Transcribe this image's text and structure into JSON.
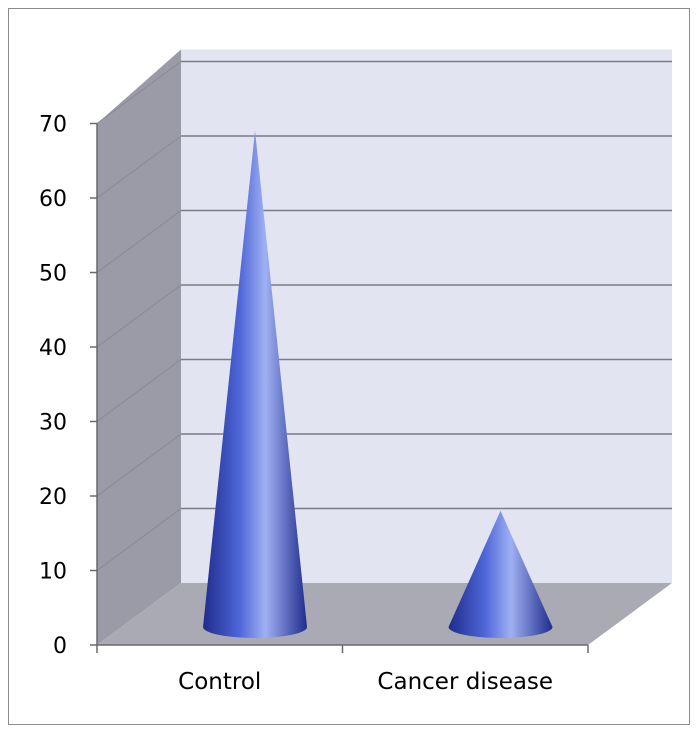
{
  "chart_data": {
    "type": "bar",
    "subtype": "3d-cone",
    "categories": [
      "Control",
      "Cancer disease"
    ],
    "series": [
      {
        "values": [
          67,
          16
        ]
      }
    ],
    "ylim": [
      0,
      70
    ],
    "yticks": [
      0,
      10,
      20,
      30,
      40,
      50,
      60,
      70
    ],
    "grid": true,
    "legend": "none",
    "colors": {
      "cone_light": "#9fb0f2",
      "cone_mid": "#4e66d8",
      "cone_dark": "#1f2c8c",
      "back_wall": "#e3e4f2",
      "side_wall": "#9b9ba8",
      "floor": "#a9aab4",
      "gridline": "#7c7c88"
    }
  }
}
